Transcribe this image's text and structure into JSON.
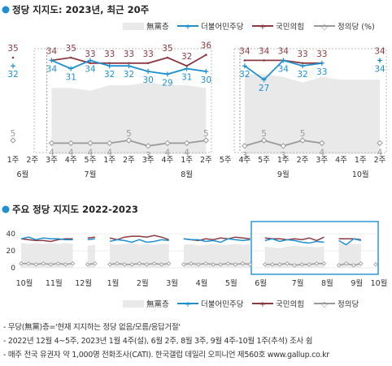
{
  "chart_data": [
    {
      "type": "line",
      "title": "정당 지지도: 2023년, 최근 20주",
      "legend_position": "top-right",
      "legend": [
        "無黨층",
        "더불어민주당",
        "국민의힘",
        "정의당 (%)"
      ],
      "x": [
        "1주",
        "2주",
        "3주",
        "4주",
        "5주",
        "1주",
        "2주",
        "3주",
        "4주",
        "1주",
        "2주",
        "5주",
        "4주",
        "5주",
        "1주",
        "2주",
        "3주",
        "4주",
        "1주",
        "2주"
      ],
      "x_groups": [
        {
          "label": "6월",
          "from": 0,
          "to": 1
        },
        {
          "label": "7월",
          "from": 2,
          "to": 6
        },
        {
          "label": "8월",
          "from": 7,
          "to": 11
        },
        {
          "label": "9월",
          "from": 12,
          "to": 16
        },
        {
          "label": "10월",
          "from": 17,
          "to": 19
        }
      ],
      "series": [
        {
          "name": "국민의힘",
          "color": "#8b3a42",
          "values": [
            35,
            null,
            34,
            35,
            33,
            33,
            33,
            33,
            35,
            32,
            36,
            null,
            34,
            34,
            34,
            33,
            33,
            null,
            null,
            34
          ]
        },
        {
          "name": "더불어민주당",
          "color": "#1e90d0",
          "values": [
            32,
            null,
            34,
            31,
            34,
            32,
            32,
            30,
            29,
            31,
            30,
            null,
            32,
            27,
            34,
            32,
            33,
            null,
            null,
            34
          ]
        },
        {
          "name": "정의당",
          "color": "#9a9a9a",
          "values": [
            5,
            null,
            4,
            4,
            4,
            4,
            5,
            3,
            4,
            4,
            5,
            null,
            3,
            5,
            3,
            5,
            4,
            null,
            null,
            4
          ]
        },
        {
          "name": "無黨층",
          "color": "#e9e9e9",
          "values": [
            null,
            null,
            24,
            24,
            23,
            25,
            25,
            26,
            25,
            25,
            24,
            null,
            29,
            29,
            28,
            26,
            28,
            27,
            27,
            27
          ]
        }
      ]
    },
    {
      "type": "line",
      "title": "주요 정당 지지도 2022-2023",
      "legend_position": "bottom-right",
      "x_labels": [
        "10월",
        "11월",
        "12월",
        "1월",
        "2월",
        "3월",
        "4월",
        "5월",
        "6월",
        "7월",
        "8월",
        "9월",
        "10월"
      ],
      "y_ticks": [
        0,
        20,
        40
      ],
      "series": [
        {
          "name": "국민의힘",
          "color": "#8b3a42",
          "values": [
            34,
            33,
            32,
            32,
            31,
            33,
            34,
            34,
            null,
            35,
            36,
            null,
            35,
            33,
            36,
            37,
            37,
            36,
            38,
            36,
            33,
            null,
            34,
            33,
            32,
            34,
            33,
            35,
            34,
            36,
            35,
            34,
            null,
            35,
            34,
            34,
            33,
            34,
            33,
            35,
            32,
            36,
            null,
            34,
            34,
            34,
            33,
            null,
            34
          ]
        },
        {
          "name": "더불어민주당",
          "color": "#1e90d0",
          "values": [
            34,
            36,
            33,
            35,
            34,
            34,
            33,
            33,
            null,
            33,
            34,
            null,
            31,
            33,
            32,
            30,
            33,
            30,
            31,
            33,
            32,
            null,
            34,
            33,
            33,
            31,
            32,
            30,
            34,
            33,
            32,
            33,
            null,
            32,
            34,
            31,
            33,
            32,
            30,
            29,
            31,
            30,
            null,
            32,
            27,
            34,
            32,
            null,
            34
          ]
        },
        {
          "name": "정의당",
          "color": "#9a9a9a",
          "values": [
            5,
            5,
            4,
            5,
            4,
            5,
            4,
            5,
            null,
            4,
            5,
            null,
            4,
            5,
            4,
            4,
            5,
            4,
            5,
            4,
            5,
            null,
            4,
            5,
            4,
            5,
            4,
            4,
            5,
            4,
            5,
            4,
            null,
            4,
            4,
            4,
            5,
            3,
            4,
            4,
            5,
            5,
            null,
            3,
            5,
            3,
            5,
            null,
            4
          ]
        },
        {
          "name": "無黨층",
          "color": "#e9e9e9",
          "values": [
            29,
            28,
            29,
            28,
            29,
            28,
            29,
            28,
            null,
            26,
            27,
            null,
            28,
            27,
            28,
            29,
            27,
            28,
            27,
            28,
            28,
            null,
            27,
            28,
            26,
            27,
            28,
            27,
            27,
            28,
            27,
            28,
            null,
            25,
            24,
            23,
            25,
            26,
            25,
            25,
            24,
            25,
            null,
            29,
            29,
            28,
            28,
            null,
            27
          ]
        }
      ]
    }
  ],
  "notes": [
    "- 무당(無黨)층='현재 지지하는 정당 없음/모름/응답거절'",
    "- 2022년 12월 4~5주, 2023년 1월 4주(설), 6월 2주, 8월 3주, 9월 4주-10월 1주(추석) 조사 쉼",
    "- 매주 전국 유권자 약 1,000명 전화조사(CATI). 한국갤럽 데일리 오피니언 제560호 www.gallup.co.kr"
  ]
}
